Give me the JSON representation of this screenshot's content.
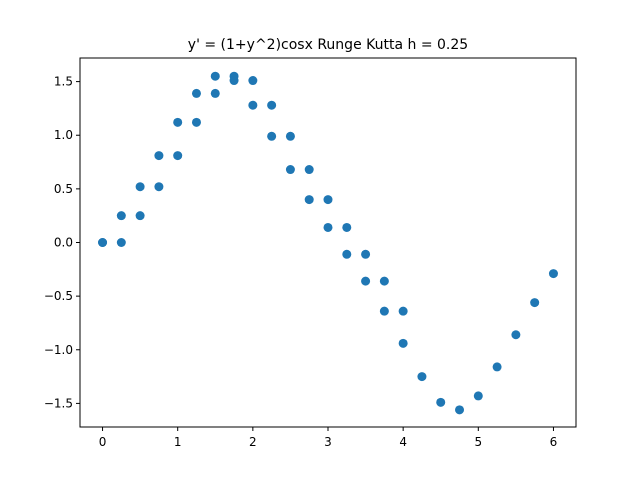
{
  "chart_data": {
    "type": "scatter",
    "title": "y' = (1+y^2)cosx Runge Kutta h = 0.25",
    "xlabel": "",
    "ylabel": "",
    "xlim": [
      -0.3,
      6.3
    ],
    "ylim": [
      -1.72,
      1.72
    ],
    "grid": false,
    "x_ticks": [
      0,
      1,
      2,
      3,
      4,
      5,
      6
    ],
    "x_tick_labels": [
      "0",
      "1",
      "2",
      "3",
      "4",
      "5",
      "6"
    ],
    "y_ticks": [
      -1.5,
      -1.0,
      -0.5,
      0.0,
      0.5,
      1.0,
      1.5
    ],
    "y_tick_labels": [
      "−1.5",
      "−1.0",
      "−0.5",
      "0.0",
      "0.5",
      "1.0",
      "1.5"
    ],
    "color": "#1f77b4",
    "series": [
      {
        "x": [
          0,
          0,
          0.25,
          0.25,
          0.5,
          0.5,
          0.75,
          0.75,
          1.0,
          1.0,
          1.25,
          1.25,
          1.5,
          1.5,
          1.75,
          1.75,
          2.0,
          2.0,
          2.25,
          2.25,
          2.5,
          2.5,
          2.75,
          2.75,
          3.0,
          3.0,
          3.25,
          3.25,
          3.5,
          3.5,
          3.75,
          3.75,
          4.0,
          4.0,
          4.25,
          4.5,
          4.75,
          5.0,
          5.25,
          5.5,
          5.75,
          6.0
        ],
        "y": [
          0.0,
          0.0,
          0.25,
          0.0,
          0.52,
          0.25,
          0.81,
          0.52,
          1.12,
          0.81,
          1.39,
          1.12,
          1.55,
          1.39,
          1.55,
          1.51,
          1.51,
          1.28,
          1.28,
          0.99,
          0.99,
          0.68,
          0.68,
          0.4,
          0.4,
          0.14,
          0.14,
          -0.11,
          -0.11,
          -0.36,
          -0.36,
          -0.64,
          -0.64,
          -0.94,
          -1.25,
          -1.49,
          -1.56,
          -1.43,
          -1.16,
          -0.86,
          -0.56,
          -0.29
        ]
      }
    ]
  }
}
